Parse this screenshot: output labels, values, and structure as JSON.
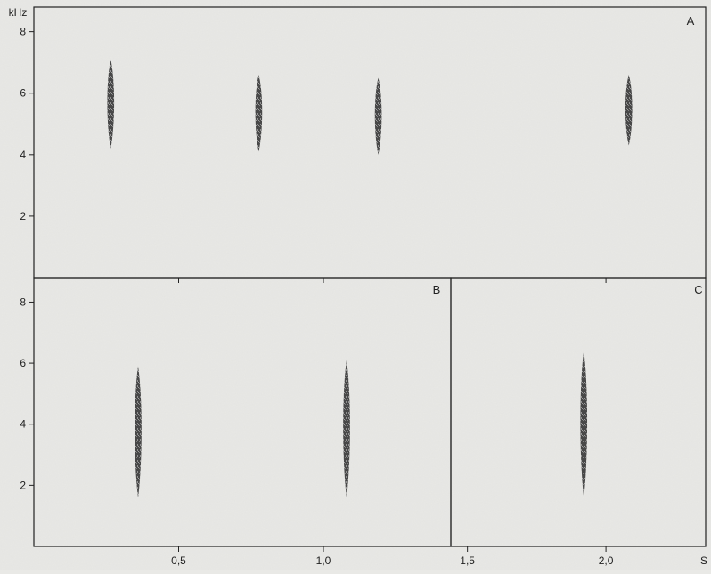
{
  "chart_data": [
    {
      "id": "A",
      "type": "scatter",
      "panel_label": "A",
      "ylabel": "kHz",
      "xlim": [
        0,
        2.36
      ],
      "ylim": [
        0,
        8.8
      ],
      "yticks": [
        2,
        4,
        6,
        8
      ],
      "ytick_labels": [
        "2",
        "4",
        "6",
        "8"
      ],
      "calls": [
        {
          "t": 0.27,
          "f_low": 4.2,
          "f_high": 7.1
        },
        {
          "t": 0.79,
          "f_low": 4.1,
          "f_high": 6.6
        },
        {
          "t": 1.21,
          "f_low": 4.0,
          "f_high": 6.5
        },
        {
          "t": 2.09,
          "f_low": 4.3,
          "f_high": 6.6
        }
      ]
    },
    {
      "id": "B",
      "type": "scatter",
      "panel_label": "B",
      "xlim": [
        0,
        1.44
      ],
      "ylim": [
        0,
        8.8
      ],
      "yticks": [
        2,
        4,
        6,
        8
      ],
      "ytick_labels": [
        "2",
        "4",
        "6",
        "8"
      ],
      "calls": [
        {
          "t": 0.36,
          "f_low": 1.6,
          "f_high": 5.9
        },
        {
          "t": 1.08,
          "f_low": 1.6,
          "f_high": 6.1
        }
      ]
    },
    {
      "id": "C",
      "type": "scatter",
      "panel_label": "C",
      "xlim": [
        1.44,
        2.36
      ],
      "ylim": [
        0,
        8.8
      ],
      "calls": [
        {
          "t": 1.92,
          "f_low": 1.6,
          "f_high": 6.4
        }
      ]
    }
  ],
  "x_axis": {
    "xlabel": "S",
    "ticks": [
      0.5,
      1.0,
      1.5,
      2.0
    ],
    "tick_labels": [
      "0,5",
      "1,0",
      "1,5",
      "2,0"
    ]
  },
  "colors": {
    "ink": "#222222",
    "background": "#e9e9e6"
  }
}
